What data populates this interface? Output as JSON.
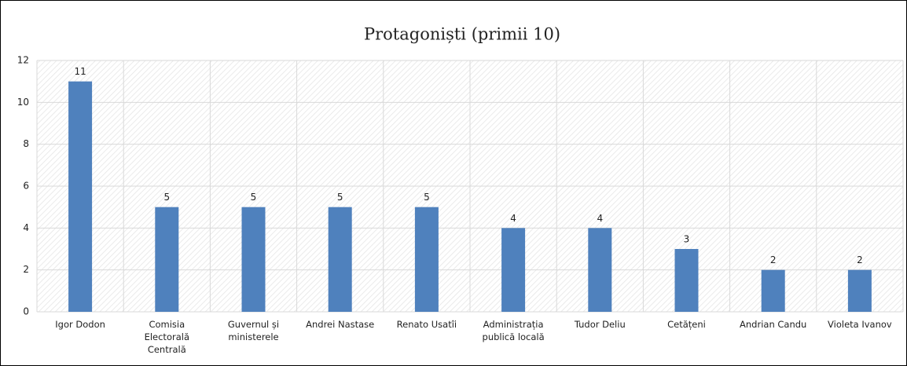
{
  "chart_data": {
    "type": "bar",
    "title": "Protagoniști (primii 10)",
    "categories": [
      "Igor Dodon",
      "Comisia\nElectorală\nCentrală",
      "Guvernul și\nministerele",
      "Andrei Nastase",
      "Renato Usatîi",
      "Administrația\npublică locală",
      "Tudor Deliu",
      "Cetățeni",
      "Andrian Candu",
      "Violeta Ivanov"
    ],
    "values": [
      11,
      5,
      5,
      5,
      5,
      4,
      4,
      3,
      2,
      2
    ],
    "color": "#4f81bd",
    "ylim": [
      0,
      12
    ],
    "yticks": [
      0,
      2,
      4,
      6,
      8,
      10,
      12
    ],
    "grid": true
  }
}
